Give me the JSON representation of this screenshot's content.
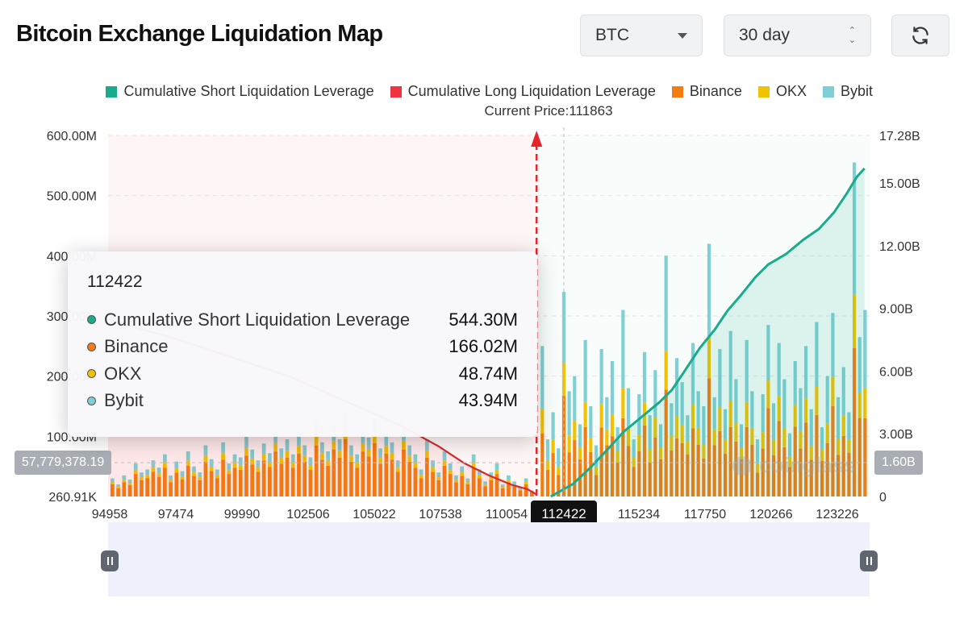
{
  "header": {
    "title": "Bitcoin Exchange Liquidation Map",
    "coin_select": "BTC",
    "period_select": "30 day"
  },
  "icons": {
    "coin_caret": "chevron-down-icon",
    "period_stepper": "up-down-stepper-icon",
    "refresh": "refresh-icon"
  },
  "legend": [
    {
      "label": "Cumulative Short Liquidation Leverage",
      "color": "#1aaa8c"
    },
    {
      "label": "Cumulative Long Liquidation Leverage",
      "color": "#ef3340"
    },
    {
      "label": "Binance",
      "color": "#f47c10"
    },
    {
      "label": "OKX",
      "color": "#f2c200"
    },
    {
      "label": "Bybit",
      "color": "#7fd0d4"
    }
  ],
  "current_price_label": "Current Price:111863",
  "tooltip": {
    "title": "112422",
    "rows": [
      {
        "label": "Cumulative Short Liquidation Leverage",
        "value": "544.30M",
        "color": "#1aaa8c"
      },
      {
        "label": "Binance",
        "value": "166.02M",
        "color": "#f47c10"
      },
      {
        "label": "OKX",
        "value": "48.74M",
        "color": "#f2c200"
      },
      {
        "label": "Bybit",
        "value": "43.94M",
        "color": "#7fd0d4"
      }
    ]
  },
  "crosshair": {
    "left_axis_value": "57,779,378.19",
    "right_axis_value": "1.60B",
    "x_value": "112422"
  },
  "watermark": "coinglass",
  "chart_data": {
    "type": "bar",
    "title": "Bitcoin Exchange Liquidation Map",
    "current_price": 111863,
    "x_range": [
      94958,
      125000
    ],
    "x_tick_labels": [
      "94958",
      "97474",
      "99990",
      "102506",
      "105022",
      "107538",
      "110054",
      "112422",
      "115234",
      "117750",
      "120266",
      "123226"
    ],
    "y_left": {
      "ylim": [
        0,
        600000000
      ],
      "tick_values": [
        100000000,
        200000000,
        300000000,
        400000000,
        500000000,
        600000000
      ],
      "tick_labels": [
        "100.00M",
        "200.00M",
        "300.00M",
        "400.00M",
        "500.00M",
        "600.00M"
      ],
      "min_label": "260.91K"
    },
    "y_right": {
      "ylim": [
        0,
        17280000000
      ],
      "tick_values": [
        0,
        3000000000,
        6000000000,
        9000000000,
        12000000000,
        15000000000,
        17280000000
      ],
      "tick_labels": [
        "0",
        "3.00B",
        "6.00B",
        "9.00B",
        "12.00B",
        "15.00B",
        "17.28B"
      ]
    },
    "grid": true,
    "legend_position": "top",
    "bars": {
      "series": [
        "Binance",
        "OKX",
        "Bybit"
      ],
      "short_side_totals_M": [
        250,
        95,
        140,
        80,
        340,
        175,
        200,
        120,
        260,
        150,
        85,
        245,
        165,
        225,
        115,
        310,
        180,
        95,
        170,
        240,
        135,
        210,
        120,
        400,
        155,
        230,
        190,
        135,
        255,
        175,
        150,
        420,
        165,
        245,
        145,
        275,
        195,
        120,
        260,
        175,
        95,
        170,
        285,
        155,
        255,
        195,
        105,
        225,
        180,
        250,
        145,
        290,
        115,
        200,
        305,
        165,
        215,
        140,
        555,
        265,
        310
      ],
      "long_side_totals_M": [
        30,
        20,
        35,
        28,
        55,
        40,
        45,
        60,
        48,
        70,
        35,
        58,
        42,
        75,
        50,
        40,
        85,
        62,
        45,
        90,
        55,
        70,
        65,
        100,
        78,
        60,
        88,
        72,
        110,
        80,
        95,
        70,
        105,
        85,
        65,
        125,
        90,
        75,
        115,
        95,
        140,
        85,
        70,
        110,
        98,
        130,
        80,
        105,
        90,
        60,
        115,
        85,
        70,
        45,
        95,
        60,
        40,
        75,
        55,
        35,
        50,
        30,
        70,
        45,
        25,
        40,
        55,
        20,
        35,
        25,
        15,
        30,
        10
      ]
    },
    "cumulative_short_B": {
      "x": [
        112422,
        113300,
        114000,
        114700,
        115300,
        116000,
        116700,
        117200,
        117700,
        118300,
        118900,
        119400,
        119900,
        120500,
        121000,
        121700,
        122400,
        123000,
        123600,
        124100,
        124500,
        124800
      ],
      "y": [
        0.0,
        0.6,
        1.4,
        2.3,
        3.1,
        3.8,
        4.5,
        5.1,
        6.0,
        7.1,
        8.0,
        8.9,
        9.6,
        10.5,
        11.1,
        11.6,
        12.3,
        12.8,
        13.6,
        14.5,
        15.3,
        15.7
      ]
    },
    "cumulative_long_B": {
      "x": [
        94958,
        96000,
        97500,
        99000,
        100500,
        102000,
        103500,
        105000,
        106500,
        108000,
        109000,
        110000,
        110900,
        111500,
        111863
      ],
      "y": [
        8.5,
        8.1,
        7.6,
        7.0,
        6.4,
        5.8,
        5.0,
        4.2,
        3.4,
        2.4,
        1.6,
        1.0,
        0.55,
        0.35,
        0.1
      ]
    }
  }
}
